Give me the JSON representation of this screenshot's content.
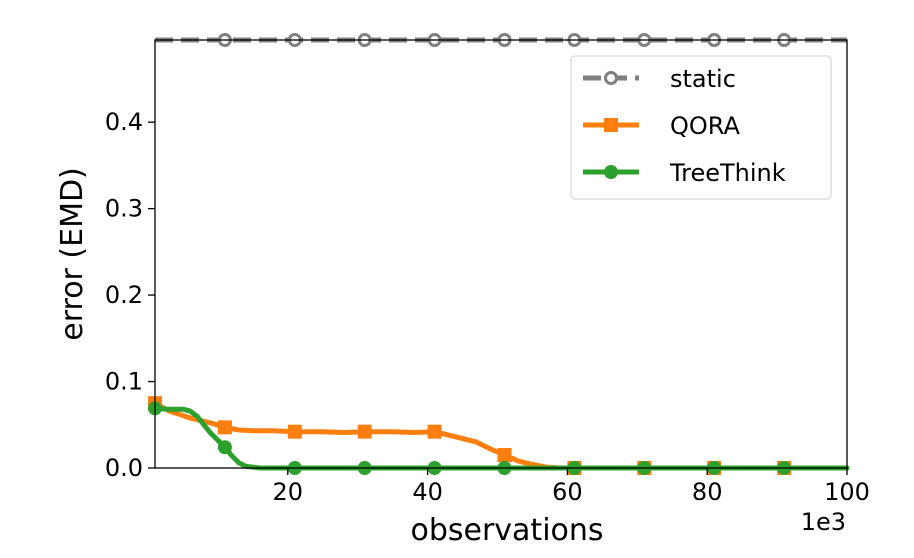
{
  "chart_data": {
    "type": "line",
    "xlabel": "observations",
    "ylabel": "error (EMD)",
    "x_offset_label": "1e3",
    "xlim": [
      1,
      100
    ],
    "ylim": [
      0,
      0.495
    ],
    "xticks": [
      20,
      40,
      60,
      80,
      100
    ],
    "xtick_labels": [
      "20",
      "40",
      "60",
      "80",
      "100"
    ],
    "yticks": [
      0.0,
      0.1,
      0.2,
      0.3,
      0.4
    ],
    "ytick_labels": [
      "0.0",
      "0.1",
      "0.2",
      "0.3",
      "0.4"
    ],
    "grid": false,
    "legend_position": "top-right",
    "series": [
      {
        "name": "static",
        "color": "#7f7f7f",
        "line_style": "dashed",
        "marker": "open-circle",
        "x": [
          1,
          100
        ],
        "y": [
          0.495,
          0.495
        ],
        "marker_x": [
          11,
          21,
          31,
          41,
          51,
          61,
          71,
          81,
          91
        ]
      },
      {
        "name": "QORA",
        "color": "#ff7f0e",
        "line_style": "solid",
        "marker": "square",
        "x": [
          1,
          3,
          6,
          9,
          11,
          13,
          15,
          18,
          21,
          25,
          28,
          31,
          35,
          38,
          41,
          43,
          45,
          47,
          49,
          51,
          53,
          55,
          57,
          59,
          61,
          65,
          71,
          81,
          91,
          100
        ],
        "y": [
          0.075,
          0.066,
          0.058,
          0.052,
          0.047,
          0.044,
          0.043,
          0.043,
          0.042,
          0.042,
          0.041,
          0.042,
          0.042,
          0.041,
          0.042,
          0.038,
          0.034,
          0.03,
          0.022,
          0.015,
          0.008,
          0.004,
          0.001,
          0.0,
          0.0,
          0.0,
          0.0,
          0.0,
          0.0,
          0.0
        ],
        "marker_x": [
          1,
          11,
          21,
          31,
          41,
          51,
          61,
          71,
          81,
          91
        ],
        "marker_y": [
          0.075,
          0.047,
          0.042,
          0.042,
          0.042,
          0.015,
          0.0,
          0.0,
          0.0,
          0.0
        ]
      },
      {
        "name": "TreeThink",
        "color": "#2ca02c",
        "line_style": "solid",
        "marker": "circle",
        "x": [
          1,
          3,
          5,
          6,
          7,
          8,
          9,
          10,
          11,
          12,
          13,
          14,
          15,
          16,
          18,
          21,
          31,
          41,
          51,
          61,
          71,
          81,
          91,
          100
        ],
        "y": [
          0.069,
          0.068,
          0.068,
          0.066,
          0.06,
          0.05,
          0.04,
          0.032,
          0.024,
          0.014,
          0.006,
          0.002,
          0.001,
          0.0,
          0.0,
          0.0,
          0.0,
          0.0,
          0.0,
          0.0,
          0.0,
          0.0,
          0.0,
          0.0
        ],
        "marker_x": [
          1,
          11,
          21,
          31,
          41,
          51,
          61,
          71,
          81,
          91
        ],
        "marker_y": [
          0.069,
          0.024,
          0.0,
          0.0,
          0.0,
          0.0,
          0.0,
          0.0,
          0.0,
          0.0
        ]
      }
    ]
  }
}
